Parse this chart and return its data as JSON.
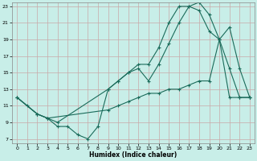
{
  "xlabel": "Humidex (Indice chaleur)",
  "bg_color": "#c8eee8",
  "grid_color": "#c8a8a8",
  "line_color": "#1a6b5a",
  "xlim": [
    -0.5,
    23.5
  ],
  "ylim": [
    6.5,
    23.5
  ],
  "yticks": [
    7,
    9,
    11,
    13,
    15,
    17,
    19,
    21,
    23
  ],
  "xticks": [
    0,
    1,
    2,
    3,
    4,
    5,
    6,
    7,
    8,
    9,
    10,
    11,
    12,
    13,
    14,
    15,
    16,
    17,
    18,
    19,
    20,
    21,
    22,
    23
  ],
  "line1_x": [
    0,
    1,
    2,
    3,
    4,
    5,
    6,
    7,
    8,
    9,
    10,
    11,
    12,
    13,
    14,
    15,
    16,
    17,
    18,
    19,
    20,
    21,
    22,
    23
  ],
  "line1_y": [
    12,
    11,
    10,
    9.5,
    8.5,
    8.5,
    7.5,
    7,
    8.5,
    13,
    14,
    15,
    16,
    16,
    18,
    21,
    23,
    23,
    22.5,
    20,
    19,
    15.5,
    12,
    12
  ],
  "line2_x": [
    0,
    2,
    3,
    4,
    9,
    10,
    11,
    12,
    13,
    14,
    15,
    16,
    17,
    18,
    19,
    20,
    21,
    22,
    23
  ],
  "line2_y": [
    12,
    10,
    9.5,
    9,
    13,
    14,
    15,
    15.5,
    14,
    16,
    18.5,
    21,
    23,
    23.5,
    22,
    19,
    20.5,
    15.5,
    12
  ],
  "line3_x": [
    0,
    2,
    3,
    9,
    10,
    11,
    12,
    13,
    14,
    15,
    16,
    17,
    18,
    19,
    20,
    21,
    22,
    23
  ],
  "line3_y": [
    12,
    10,
    9.5,
    10.5,
    11,
    11.5,
    12,
    12.5,
    12.5,
    13,
    13,
    13.5,
    14,
    14,
    19,
    12,
    12,
    12
  ]
}
